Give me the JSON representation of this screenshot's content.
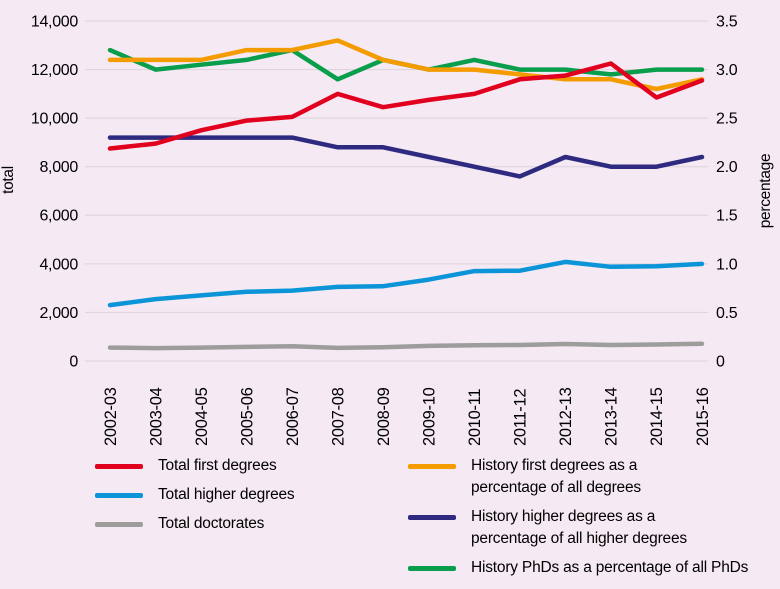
{
  "window": {
    "title": ""
  },
  "colors": {
    "background": "#f5e9f3",
    "gridline": "#ddd1db",
    "text": "#000000"
  },
  "chart_data": {
    "type": "line",
    "title": "",
    "background": "#f5e9f3",
    "gridline_color": "#ddd1db",
    "grid": "horizontal",
    "categories": [
      "2002-03",
      "2003-04",
      "2004-05",
      "2005-06",
      "2006-07",
      "2007-08",
      "2008-09",
      "2009-10",
      "2010-11",
      "2011-12",
      "2012-13",
      "2013-14",
      "2014-15",
      "2015-16"
    ],
    "left_axis": {
      "label": "total",
      "min": 0,
      "max": 14000,
      "tick_step": 2000,
      "ticks": [
        "0",
        "2,000",
        "4,000",
        "6,000",
        "8,000",
        "10,000",
        "12,000",
        "14,000"
      ]
    },
    "right_axis": {
      "label": "percentage",
      "min": 0,
      "max": 3.5,
      "tick_step": 0.5,
      "ticks": [
        "0",
        "0.5",
        "1.0",
        "1.5",
        "2.0",
        "2.5",
        "3.0",
        "3.5"
      ]
    },
    "series": [
      {
        "name": "Total first degrees",
        "legend_lines": [
          "Total first degrees"
        ],
        "legend_column": "left",
        "axis": "left",
        "color": "#e2001f",
        "values": [
          8750,
          8950,
          9500,
          9900,
          10050,
          11000,
          10450,
          10750,
          11000,
          11600,
          11750,
          12250,
          10850,
          11550
        ]
      },
      {
        "name": "Total higher degrees",
        "legend_lines": [
          "Total higher degrees"
        ],
        "legend_column": "left",
        "axis": "left",
        "color": "#0b95d8",
        "values": [
          2300,
          2550,
          2700,
          2850,
          2900,
          3050,
          3080,
          3350,
          3700,
          3720,
          4080,
          3880,
          3900,
          4000
        ]
      },
      {
        "name": "Total doctorates",
        "legend_lines": [
          "Total doctorates"
        ],
        "legend_column": "left",
        "axis": "left",
        "color": "#9d9d9c",
        "values": [
          550,
          530,
          550,
          580,
          610,
          540,
          570,
          620,
          650,
          660,
          700,
          660,
          680,
          710
        ]
      },
      {
        "name": "History first degrees as a percentage of all degrees",
        "legend_lines": [
          "History first degrees as a",
          "percentage of all degrees"
        ],
        "legend_column": "right",
        "axis": "right",
        "color": "#f49b00",
        "values": [
          3.1,
          3.1,
          3.1,
          3.2,
          3.2,
          3.3,
          3.1,
          3.0,
          3.0,
          2.95,
          2.9,
          2.9,
          2.8,
          2.9
        ]
      },
      {
        "name": "History higher degrees as a percentage of all higher degrees",
        "legend_lines": [
          "History higher degrees as a",
          "percentage of all higher degrees"
        ],
        "legend_column": "right",
        "axis": "right",
        "color": "#2e2a80",
        "values": [
          2.3,
          2.3,
          2.3,
          2.3,
          2.3,
          2.2,
          2.2,
          2.1,
          2.0,
          1.9,
          2.1,
          2.0,
          2.0,
          2.1
        ]
      },
      {
        "name": "History PhDs as a percentage of all PhDs",
        "legend_lines": [
          "History PhDs as a percentage of all PhDs"
        ],
        "legend_column": "right",
        "axis": "right",
        "color": "#089e4c",
        "values": [
          3.2,
          3.0,
          3.05,
          3.1,
          3.2,
          2.9,
          3.1,
          3.0,
          3.1,
          3.0,
          3.0,
          2.95,
          3.0,
          3.0
        ]
      }
    ],
    "legend_position": "bottom"
  }
}
